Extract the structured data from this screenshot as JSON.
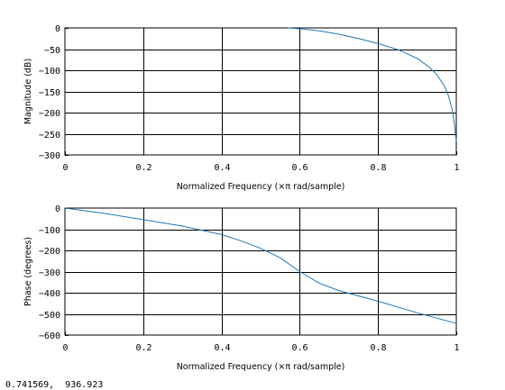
{
  "chart_data": [
    {
      "type": "line",
      "title": "",
      "xlabel": "Normalized Frequency (×π rad/sample)",
      "ylabel": "Magnitude (dB)",
      "xlim": [
        0,
        1
      ],
      "ylim": [
        -300,
        0
      ],
      "xticks": [
        0,
        0.2,
        0.4,
        0.6,
        0.8,
        1
      ],
      "xtick_labels": [
        "0",
        "0.2",
        "0.4",
        "0.6",
        "0.8",
        "1"
      ],
      "yticks": [
        0,
        -50,
        -100,
        -150,
        -200,
        -250,
        -300
      ],
      "ytick_labels": [
        "0",
        "−50",
        "−100",
        "−150",
        "−200",
        "−250",
        "−300"
      ],
      "grid": true,
      "line_color": "#1f77b4",
      "series": [
        {
          "x": [
            0.57,
            0.6,
            0.65,
            0.7,
            0.75,
            0.8,
            0.85,
            0.9,
            0.93,
            0.95,
            0.97,
            0.98,
            0.99,
            0.995,
            1.0
          ],
          "y": [
            0,
            -2,
            -7,
            -15,
            -25,
            -37,
            -51,
            -72,
            -92,
            -110,
            -138,
            -160,
            -195,
            -225,
            -268
          ]
        }
      ]
    },
    {
      "type": "line",
      "title": "",
      "xlabel": "Normalized Frequency (×π rad/sample)",
      "ylabel": "Phase (degrees)",
      "xlim": [
        0,
        1
      ],
      "ylim": [
        -600,
        0
      ],
      "xticks": [
        0,
        0.2,
        0.4,
        0.6,
        0.8,
        1
      ],
      "xtick_labels": [
        "0",
        "0.2",
        "0.4",
        "0.6",
        "0.8",
        "1"
      ],
      "yticks": [
        0,
        -100,
        -200,
        -300,
        -400,
        -500,
        -600
      ],
      "ytick_labels": [
        "0",
        "−100",
        "−200",
        "−300",
        "−400",
        "−500",
        "−600"
      ],
      "grid": true,
      "line_color": "#1f77b4",
      "series": [
        {
          "x": [
            0,
            0.1,
            0.2,
            0.3,
            0.4,
            0.45,
            0.5,
            0.55,
            0.6,
            0.65,
            0.7,
            0.8,
            0.9,
            1.0
          ],
          "y": [
            0,
            -25,
            -55,
            -85,
            -125,
            -155,
            -190,
            -235,
            -300,
            -355,
            -390,
            -440,
            -495,
            -545
          ]
        }
      ]
    }
  ],
  "status_readout": "0.741569,  936.923"
}
